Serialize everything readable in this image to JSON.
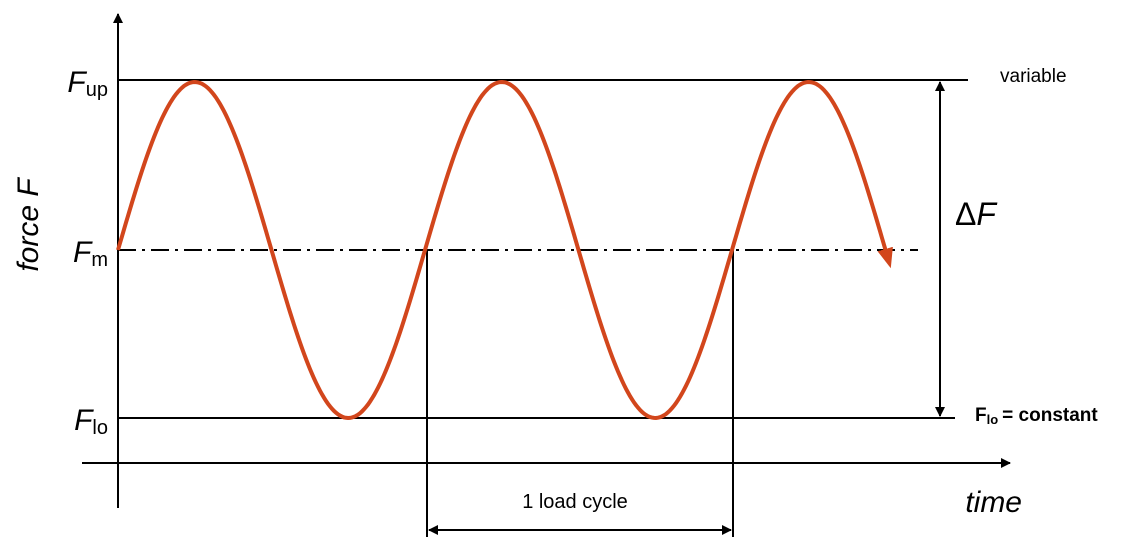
{
  "axes": {
    "y_label": "force F",
    "x_label": "time"
  },
  "levels": {
    "upper": {
      "symbol": "F",
      "subscript": "up",
      "note": "variable"
    },
    "mean": {
      "symbol": "F",
      "subscript": "m"
    },
    "lower": {
      "symbol": "F",
      "subscript": "lo",
      "note_subscript": "lo",
      "note": "= constant"
    }
  },
  "range_label": {
    "symbol": "Δ",
    "letter": "F"
  },
  "cycle_label": "1 load cycle"
}
